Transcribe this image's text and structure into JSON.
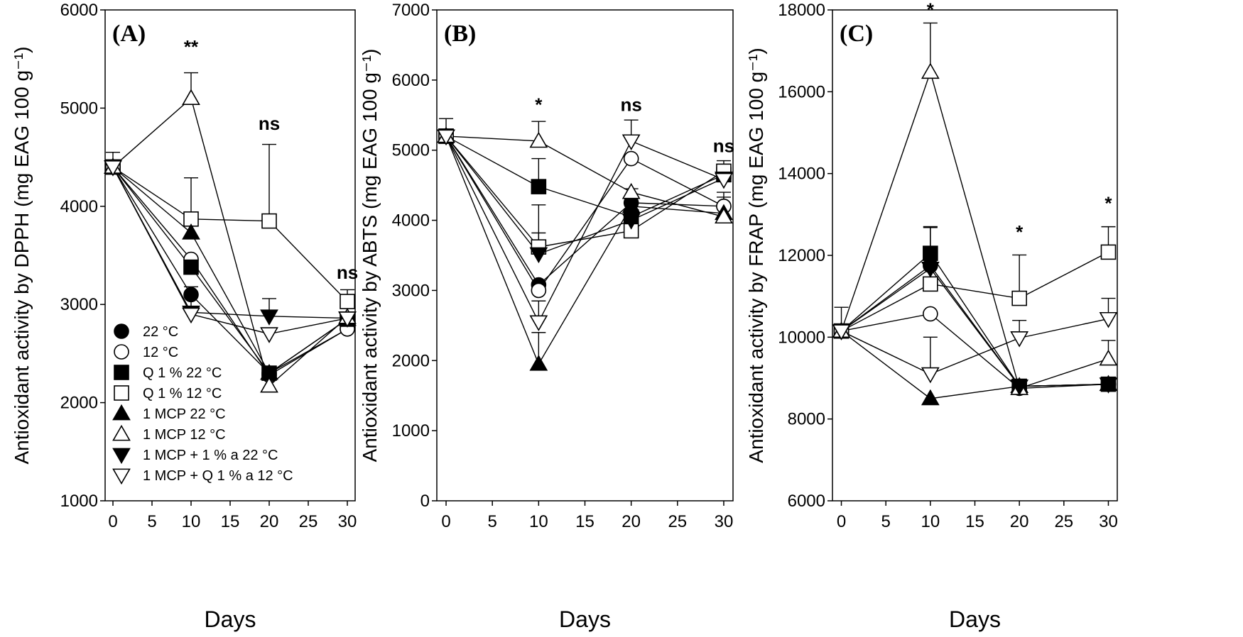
{
  "series_styles": [
    {
      "name": "22 °C",
      "marker": "circle",
      "fill": "#000000"
    },
    {
      "name": "12 °C",
      "marker": "circle",
      "fill": "#ffffff"
    },
    {
      "name": "Q 1 % 22 °C",
      "marker": "square",
      "fill": "#000000"
    },
    {
      "name": "Q 1 % 12 °C",
      "marker": "square",
      "fill": "#ffffff"
    },
    {
      "name": "1 MCP 22 °C",
      "marker": "triangle-up",
      "fill": "#000000"
    },
    {
      "name": "1 MCP 12 °C",
      "marker": "triangle-up",
      "fill": "#ffffff"
    },
    {
      "name": "1 MCP + 1 % a 22 °C",
      "marker": "triangle-down",
      "fill": "#000000"
    },
    {
      "name": "1 MCP + Q 1 % a 12 °C",
      "marker": "triangle-down",
      "fill": "#ffffff"
    }
  ],
  "chart_data": [
    {
      "panel": "(A)",
      "type": "line",
      "xlabel": "Days",
      "ylabel": "Antioxidant activity by DPPH (mg EAG 100 g⁻¹)",
      "xlim": [
        -1,
        31
      ],
      "ylim": [
        1000,
        6000
      ],
      "xticks": [
        0,
        5,
        10,
        15,
        20,
        25,
        30
      ],
      "yticks": [
        1000,
        2000,
        3000,
        4000,
        5000,
        6000
      ],
      "x": [
        0,
        10,
        20,
        30
      ],
      "legend": "bottom-left",
      "annotations": [
        {
          "x": 10,
          "y": 5560,
          "text": "**"
        },
        {
          "x": 20,
          "y": 4780,
          "text": "ns"
        },
        {
          "x": 30,
          "y": 3260,
          "text": "ns"
        }
      ],
      "series": [
        {
          "name": "22 °C",
          "values": [
            4400,
            3100,
            2300,
            2750
          ],
          "errors": [
            0,
            0,
            0,
            0
          ]
        },
        {
          "name": "12 °C",
          "values": [
            4400,
            3460,
            2280,
            2750
          ],
          "errors": [
            0,
            0,
            0,
            0
          ]
        },
        {
          "name": "Q 1 % 22 °C",
          "values": [
            4400,
            3380,
            2300,
            2850
          ],
          "errors": [
            0,
            0,
            0,
            0
          ]
        },
        {
          "name": "Q 1 % 12 °C",
          "values": [
            4400,
            3870,
            3850,
            3030
          ],
          "errors": [
            150,
            420,
            780,
            120
          ]
        },
        {
          "name": "1 MCP 22 °C",
          "values": [
            4400,
            3730,
            2300,
            2850
          ],
          "errors": [
            0,
            0,
            0,
            0
          ]
        },
        {
          "name": "1 MCP 12 °C",
          "values": [
            4400,
            5100,
            2170,
            2870
          ],
          "errors": [
            0,
            260,
            0,
            0
          ]
        },
        {
          "name": "1 MCP + 1 % a 22 °C",
          "values": [
            4400,
            2920,
            2880,
            2860
          ],
          "errors": [
            0,
            260,
            180,
            0
          ]
        },
        {
          "name": "1 MCP + Q 1 % a 12 °C",
          "values": [
            4400,
            2900,
            2700,
            2860
          ],
          "errors": [
            0,
            0,
            0,
            0
          ]
        }
      ]
    },
    {
      "panel": "(B)",
      "type": "line",
      "xlabel": "Days",
      "ylabel": "Antioxidant activity by ABTS (mg EAG 100 g⁻¹)",
      "xlim": [
        -1,
        31
      ],
      "ylim": [
        0,
        7000
      ],
      "xticks": [
        0,
        5,
        10,
        15,
        20,
        25,
        30
      ],
      "yticks": [
        0,
        1000,
        2000,
        3000,
        4000,
        5000,
        6000,
        7000
      ],
      "x": [
        0,
        10,
        20,
        30
      ],
      "legend": "none",
      "annotations": [
        {
          "x": 10,
          "y": 5560,
          "text": "*"
        },
        {
          "x": 20,
          "y": 5560,
          "text": "ns"
        },
        {
          "x": 30,
          "y": 4970,
          "text": "ns"
        }
      ],
      "series": [
        {
          "name": "22 °C",
          "values": [
            5200,
            3080,
            4250,
            4200
          ],
          "errors": [
            0,
            0,
            0,
            0
          ]
        },
        {
          "name": "12 °C",
          "values": [
            5200,
            3000,
            4880,
            4200
          ],
          "errors": [
            0,
            0,
            0,
            200
          ]
        },
        {
          "name": "Q 1 % 22 °C",
          "values": [
            5200,
            4480,
            4050,
            4650
          ],
          "errors": [
            0,
            400,
            0,
            0
          ]
        },
        {
          "name": "Q 1 % 12 °C",
          "values": [
            5200,
            3620,
            3850,
            4700
          ],
          "errors": [
            250,
            600,
            600,
            150
          ]
        },
        {
          "name": "1 MCP 22 °C",
          "values": [
            5200,
            1950,
            4200,
            4100
          ],
          "errors": [
            0,
            450,
            0,
            0
          ]
        },
        {
          "name": "1 MCP 12 °C",
          "values": [
            5200,
            5130,
            4400,
            4050
          ],
          "errors": [
            0,
            280,
            0,
            280
          ]
        },
        {
          "name": "1 MCP + 1 % a 22 °C",
          "values": [
            5200,
            3520,
            4000,
            4600
          ],
          "errors": [
            0,
            300,
            0,
            0
          ]
        },
        {
          "name": "1 MCP + Q 1 % a 12 °C",
          "values": [
            5200,
            2550,
            5130,
            4580
          ],
          "errors": [
            0,
            300,
            300,
            0
          ]
        }
      ]
    },
    {
      "panel": "(C)",
      "type": "line",
      "xlabel": "Days",
      "ylabel": "Antioxidant activity by FRAP (mg EAG 100 g⁻¹)",
      "xlim": [
        -1,
        31
      ],
      "ylim": [
        6000,
        18000
      ],
      "xticks": [
        0,
        5,
        10,
        15,
        20,
        25,
        30
      ],
      "yticks": [
        6000,
        8000,
        10000,
        12000,
        14000,
        16000,
        18000
      ],
      "x": [
        0,
        10,
        20,
        30
      ],
      "legend": "none",
      "annotations": [
        {
          "x": 10,
          "y": 17850,
          "text": "*"
        },
        {
          "x": 20,
          "y": 12420,
          "text": "*"
        },
        {
          "x": 30,
          "y": 13120,
          "text": "*"
        }
      ],
      "series": [
        {
          "name": "22 °C",
          "values": [
            10150,
            11750,
            8800,
            8850
          ],
          "errors": [
            0,
            0,
            0,
            0
          ]
        },
        {
          "name": "12 °C",
          "values": [
            10150,
            10570,
            8750,
            8850
          ],
          "errors": [
            0,
            0,
            0,
            0
          ]
        },
        {
          "name": "Q 1 % 22 °C",
          "values": [
            10150,
            12050,
            8800,
            8850
          ],
          "errors": [
            0,
            650,
            0,
            0
          ]
        },
        {
          "name": "Q 1 % 12 °C",
          "values": [
            10150,
            11300,
            10950,
            12080
          ],
          "errors": [
            580,
            1400,
            1060,
            620
          ]
        },
        {
          "name": "1 MCP 22 °C",
          "values": [
            10150,
            8500,
            8800,
            8850
          ],
          "errors": [
            0,
            0,
            0,
            0
          ]
        },
        {
          "name": "1 MCP 12 °C",
          "values": [
            10150,
            16480,
            8750,
            9470
          ],
          "errors": [
            0,
            1200,
            0,
            450
          ]
        },
        {
          "name": "1 MCP + 1 % a 22 °C",
          "values": [
            10150,
            11680,
            8800,
            8850
          ],
          "errors": [
            0,
            1000,
            0,
            0
          ]
        },
        {
          "name": "1 MCP + Q 1 % a 12 °C",
          "values": [
            10150,
            9100,
            9980,
            10450
          ],
          "errors": [
            0,
            900,
            430,
            500
          ]
        }
      ]
    }
  ]
}
